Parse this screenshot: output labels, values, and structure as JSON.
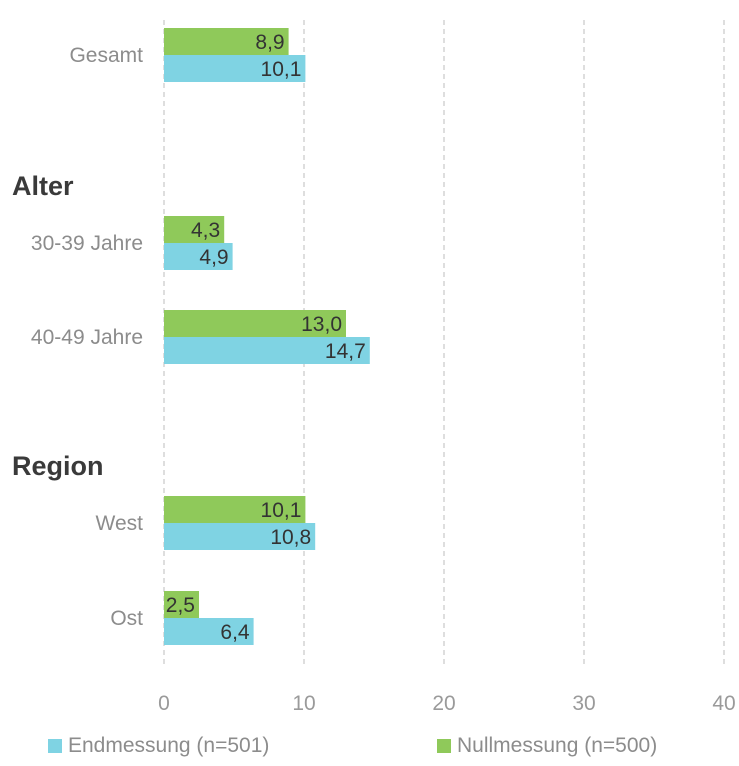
{
  "chart_data": {
    "type": "bar",
    "orientation": "horizontal",
    "rows": [
      {
        "kind": "category",
        "label": "Gesamt",
        "values": {
          "Endmessung (n=501)": 10.1,
          "Nullmessung (n=500)": 8.9
        }
      },
      {
        "kind": "group",
        "label": "Alter"
      },
      {
        "kind": "category",
        "label": "30-39 Jahre",
        "values": {
          "Endmessung (n=501)": 4.9,
          "Nullmessung (n=500)": 4.3
        }
      },
      {
        "kind": "category",
        "label": "40-49 Jahre",
        "values": {
          "Endmessung (n=501)": 14.7,
          "Nullmessung (n=500)": 13.0
        }
      },
      {
        "kind": "group",
        "label": "Region"
      },
      {
        "kind": "category",
        "label": "West",
        "values": {
          "Endmessung (n=501)": 10.8,
          "Nullmessung (n=500)": 10.1
        }
      },
      {
        "kind": "category",
        "label": "Ost",
        "values": {
          "Endmessung (n=501)": 6.4,
          "Nullmessung (n=500)": 2.5
        }
      }
    ],
    "series": [
      {
        "name": "Endmessung (n=501)",
        "color": "#7fd3e3",
        "data_labels": [
          "10,1",
          "4,9",
          "14,7",
          "10,8",
          "6,4"
        ]
      },
      {
        "name": "Nullmessung (n=500)",
        "color": "#8fc95a",
        "data_labels": [
          "8,9",
          "4,3",
          "13,0",
          "10,1",
          "2,5"
        ]
      }
    ],
    "xlim": [
      0,
      40
    ],
    "xticks": [
      0,
      10,
      20,
      30,
      40
    ],
    "grid": "vertical dashed",
    "legend_position": "bottom"
  },
  "legend": {
    "endmessung": "Endmessung (n=501)",
    "nullmessung": "Nullmessung (n=500)"
  }
}
